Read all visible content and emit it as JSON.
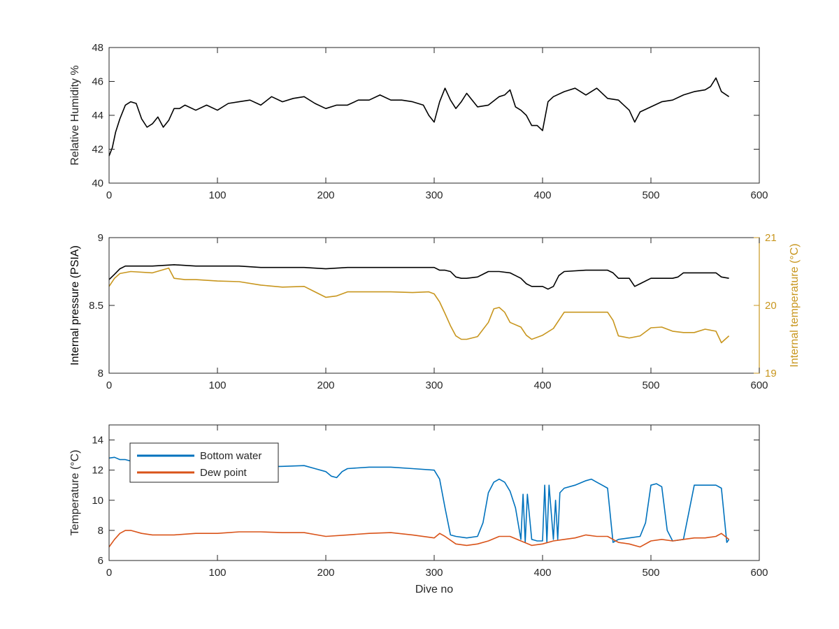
{
  "figure": {
    "colors": {
      "black": "#000000",
      "blue": "#0072BD",
      "orange": "#D95319",
      "gold": "#C8961E",
      "axis": "#262626"
    }
  },
  "chart_data": [
    {
      "id": "humidity",
      "type": "line",
      "title": "",
      "xlabel": "",
      "ylabel": "Relative Humidity %",
      "xlim": [
        0,
        600
      ],
      "ylim": [
        40,
        48
      ],
      "xticks": [
        0,
        100,
        200,
        300,
        400,
        500,
        600
      ],
      "yticks": [
        40,
        42,
        44,
        46,
        48
      ],
      "grid": false,
      "series": [
        {
          "color": "#000000",
          "x": [
            0,
            3,
            6,
            10,
            15,
            20,
            25,
            30,
            35,
            40,
            45,
            50,
            55,
            60,
            65,
            70,
            80,
            90,
            100,
            110,
            120,
            130,
            140,
            150,
            160,
            170,
            180,
            190,
            200,
            210,
            220,
            230,
            240,
            250,
            260,
            270,
            280,
            290,
            295,
            300,
            305,
            310,
            315,
            320,
            325,
            330,
            340,
            350,
            360,
            365,
            370,
            375,
            380,
            385,
            390,
            395,
            400,
            405,
            410,
            420,
            430,
            440,
            450,
            460,
            470,
            480,
            485,
            490,
            500,
            510,
            520,
            530,
            540,
            550,
            555,
            560,
            565,
            572
          ],
          "y": [
            41.6,
            42.1,
            43.0,
            43.8,
            44.6,
            44.8,
            44.7,
            43.8,
            43.3,
            43.5,
            43.9,
            43.3,
            43.7,
            44.4,
            44.4,
            44.6,
            44.3,
            44.6,
            44.3,
            44.7,
            44.8,
            44.9,
            44.6,
            45.1,
            44.8,
            45.0,
            45.1,
            44.7,
            44.4,
            44.6,
            44.6,
            44.9,
            44.9,
            45.2,
            44.9,
            44.9,
            44.8,
            44.6,
            44.0,
            43.6,
            44.8,
            45.6,
            44.9,
            44.4,
            44.8,
            45.3,
            44.5,
            44.6,
            45.1,
            45.2,
            45.5,
            44.5,
            44.3,
            44.0,
            43.4,
            43.4,
            43.1,
            44.8,
            45.1,
            45.4,
            45.6,
            45.2,
            45.6,
            45.0,
            44.9,
            44.3,
            43.6,
            44.2,
            44.5,
            44.8,
            44.9,
            45.2,
            45.4,
            45.5,
            45.7,
            46.2,
            45.4,
            45.1
          ]
        }
      ]
    },
    {
      "id": "pressure-temperature",
      "type": "line",
      "title": "",
      "xlabel": "",
      "ylabel": "Internal pressure (PSIA)",
      "ylabel_right": "Internal temperature (°C)",
      "xlim": [
        0,
        600
      ],
      "ylim": [
        8,
        9
      ],
      "ylim_right": [
        19,
        21
      ],
      "xticks": [
        0,
        100,
        200,
        300,
        400,
        500,
        600
      ],
      "yticks": [
        8,
        8.5,
        9
      ],
      "yticks_right": [
        19,
        20,
        21
      ],
      "grid": false,
      "series": [
        {
          "axis": "left",
          "color": "#000000",
          "x": [
            0,
            5,
            10,
            15,
            20,
            40,
            60,
            80,
            100,
            120,
            140,
            160,
            180,
            200,
            220,
            240,
            260,
            280,
            300,
            305,
            310,
            315,
            320,
            325,
            330,
            340,
            345,
            350,
            360,
            370,
            375,
            380,
            385,
            390,
            400,
            405,
            410,
            415,
            420,
            440,
            460,
            465,
            470,
            480,
            485,
            490,
            500,
            520,
            525,
            530,
            540,
            550,
            560,
            565,
            572
          ],
          "y": [
            8.69,
            8.73,
            8.77,
            8.79,
            8.79,
            8.79,
            8.8,
            8.79,
            8.79,
            8.79,
            8.78,
            8.78,
            8.78,
            8.77,
            8.78,
            8.78,
            8.78,
            8.78,
            8.78,
            8.76,
            8.76,
            8.75,
            8.71,
            8.7,
            8.7,
            8.71,
            8.73,
            8.75,
            8.75,
            8.74,
            8.72,
            8.7,
            8.66,
            8.64,
            8.64,
            8.62,
            8.64,
            8.72,
            8.75,
            8.76,
            8.76,
            8.74,
            8.7,
            8.7,
            8.64,
            8.66,
            8.7,
            8.7,
            8.71,
            8.74,
            8.74,
            8.74,
            8.74,
            8.71,
            8.7
          ]
        },
        {
          "axis": "right",
          "color": "#C8961E",
          "x": [
            0,
            5,
            10,
            20,
            40,
            55,
            60,
            70,
            80,
            100,
            120,
            140,
            160,
            180,
            190,
            200,
            210,
            220,
            240,
            260,
            280,
            295,
            300,
            305,
            310,
            315,
            320,
            325,
            330,
            340,
            350,
            355,
            360,
            365,
            370,
            380,
            385,
            390,
            400,
            410,
            420,
            440,
            460,
            465,
            470,
            480,
            490,
            500,
            510,
            520,
            530,
            540,
            550,
            560,
            565,
            572
          ],
          "y": [
            20.28,
            20.4,
            20.47,
            20.5,
            20.48,
            20.55,
            20.4,
            20.38,
            20.38,
            20.36,
            20.35,
            20.3,
            20.27,
            20.28,
            20.2,
            20.12,
            20.14,
            20.2,
            20.2,
            20.2,
            20.19,
            20.2,
            20.17,
            20.05,
            19.88,
            19.7,
            19.55,
            19.5,
            19.5,
            19.54,
            19.75,
            19.95,
            19.97,
            19.9,
            19.75,
            19.68,
            19.56,
            19.5,
            19.56,
            19.66,
            19.9,
            19.9,
            19.9,
            19.78,
            19.55,
            19.52,
            19.55,
            19.67,
            19.68,
            19.62,
            19.6,
            19.6,
            19.65,
            19.62,
            19.45,
            19.55
          ]
        }
      ]
    },
    {
      "id": "temperature",
      "type": "line",
      "title": "",
      "xlabel": "Dive no",
      "ylabel": "Temperature (°C)",
      "xlim": [
        0,
        600
      ],
      "ylim": [
        6,
        15
      ],
      "xticks": [
        0,
        100,
        200,
        300,
        400,
        500,
        600
      ],
      "yticks": [
        6,
        8,
        10,
        12,
        14
      ],
      "grid": false,
      "legend": "top-left",
      "series": [
        {
          "name": "Bottom water",
          "color": "#0072BD",
          "x": [
            0,
            5,
            10,
            15,
            20,
            30,
            50,
            80,
            100,
            130,
            160,
            180,
            190,
            200,
            205,
            210,
            215,
            220,
            240,
            260,
            280,
            300,
            305,
            310,
            315,
            320,
            330,
            340,
            345,
            350,
            355,
            360,
            365,
            370,
            375,
            380,
            382,
            384,
            386,
            390,
            395,
            400,
            402,
            404,
            406,
            410,
            412,
            414,
            416,
            420,
            430,
            440,
            445,
            450,
            455,
            460,
            465,
            470,
            480,
            490,
            495,
            500,
            505,
            510,
            515,
            520,
            530,
            540,
            550,
            560,
            565,
            570,
            572
          ],
          "y": [
            12.8,
            12.85,
            12.7,
            12.7,
            12.6,
            12.5,
            12.4,
            12.3,
            12.3,
            12.2,
            12.25,
            12.3,
            12.1,
            11.9,
            11.6,
            11.5,
            11.9,
            12.1,
            12.2,
            12.2,
            12.1,
            12.0,
            11.4,
            9.5,
            7.7,
            7.6,
            7.5,
            7.6,
            8.5,
            10.5,
            11.2,
            11.4,
            11.2,
            10.6,
            9.5,
            7.4,
            10.4,
            7.2,
            10.4,
            7.4,
            7.3,
            7.3,
            11.0,
            7.2,
            11.0,
            7.4,
            10.0,
            7.4,
            10.5,
            10.8,
            11.0,
            11.3,
            11.4,
            11.2,
            11.0,
            10.8,
            7.2,
            7.4,
            7.5,
            7.6,
            8.5,
            11.0,
            11.1,
            10.9,
            8.0,
            7.3,
            7.4,
            11.0,
            11.0,
            11.0,
            10.8,
            7.2,
            7.4
          ]
        },
        {
          "name": "Dew point",
          "color": "#D95319",
          "x": [
            0,
            5,
            10,
            15,
            20,
            30,
            40,
            60,
            80,
            100,
            120,
            140,
            160,
            180,
            200,
            220,
            240,
            260,
            280,
            300,
            305,
            310,
            320,
            330,
            340,
            350,
            360,
            370,
            380,
            390,
            400,
            410,
            420,
            430,
            440,
            450,
            460,
            470,
            480,
            490,
            500,
            510,
            520,
            530,
            540,
            550,
            560,
            565,
            572
          ],
          "y": [
            6.9,
            7.4,
            7.8,
            8.0,
            8.0,
            7.8,
            7.7,
            7.7,
            7.8,
            7.8,
            7.9,
            7.9,
            7.85,
            7.85,
            7.6,
            7.7,
            7.8,
            7.85,
            7.7,
            7.5,
            7.8,
            7.6,
            7.1,
            7.0,
            7.1,
            7.3,
            7.6,
            7.6,
            7.3,
            7.0,
            7.1,
            7.3,
            7.4,
            7.5,
            7.7,
            7.6,
            7.6,
            7.2,
            7.1,
            6.9,
            7.3,
            7.4,
            7.3,
            7.4,
            7.5,
            7.5,
            7.6,
            7.8,
            7.4
          ]
        }
      ]
    }
  ]
}
